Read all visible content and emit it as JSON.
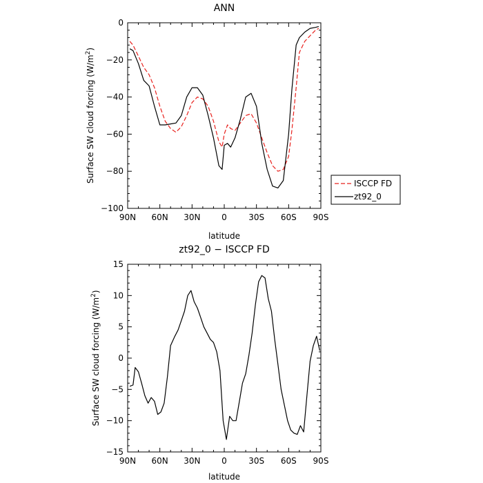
{
  "chart_data": [
    {
      "type": "line",
      "title": "ANN",
      "xlabel": "latitude",
      "ylabel": "Surface SW cloud forcing (W/m2)",
      "ylabel_main": "Surface SW cloud forcing (W/m",
      "ylabel_sup": "2",
      "ylabel_close": ")",
      "xlim": [
        90,
        -90
      ],
      "ylim": [
        -100,
        0
      ],
      "x_ticks": [
        90,
        60,
        30,
        0,
        -30,
        -60,
        -90
      ],
      "x_tick_labels": [
        "90N",
        "60N",
        "30N",
        "0",
        "30S",
        "60S",
        "90S"
      ],
      "y_ticks": [
        0,
        -20,
        -40,
        -60,
        -80,
        -100
      ],
      "y_tick_labels": [
        "0",
        "−20",
        "−40",
        "−60",
        "−80",
        "−100"
      ],
      "legend_position": "right-outside",
      "series": [
        {
          "name": "ISCCP FD",
          "color": "#e8201c",
          "dash": "dashed",
          "x": [
            88,
            85,
            80,
            75,
            70,
            65,
            60,
            55,
            50,
            45,
            40,
            35,
            30,
            25,
            20,
            15,
            10,
            5,
            2,
            0,
            -3,
            -6,
            -10,
            -15,
            -20,
            -25,
            -30,
            -35,
            -40,
            -45,
            -50,
            -55,
            -60,
            -63,
            -67,
            -70,
            -75,
            -80,
            -85,
            -88
          ],
          "y": [
            -10,
            -12,
            -18,
            -24,
            -28,
            -35,
            -45,
            -53,
            -57,
            -59,
            -56,
            -50,
            -43,
            -40,
            -41,
            -45,
            -53,
            -64,
            -67,
            -60,
            -55,
            -57,
            -58,
            -54,
            -50,
            -49,
            -54,
            -62,
            -70,
            -77,
            -80,
            -79,
            -72,
            -58,
            -35,
            -16,
            -10,
            -7,
            -4,
            -3
          ]
        },
        {
          "name": "zt92_0",
          "color": "#000000",
          "dash": "solid",
          "x": [
            88,
            85,
            80,
            75,
            70,
            65,
            60,
            55,
            50,
            45,
            40,
            35,
            30,
            25,
            20,
            15,
            10,
            5,
            2,
            0,
            -3,
            -6,
            -10,
            -15,
            -20,
            -25,
            -30,
            -35,
            -40,
            -45,
            -50,
            -55,
            -60,
            -63,
            -67,
            -70,
            -75,
            -80,
            -85,
            -88
          ],
          "y": [
            -14,
            -15,
            -22,
            -31,
            -34,
            -45,
            -55,
            -55,
            -54.5,
            -54,
            -50,
            -40,
            -35,
            -35,
            -39,
            -50,
            -62,
            -77,
            -79,
            -66,
            -65,
            -67,
            -62,
            -52,
            -40,
            -38,
            -45,
            -65,
            -79,
            -88,
            -89,
            -85,
            -60,
            -36,
            -12,
            -8,
            -5,
            -3,
            -2.5,
            -2
          ]
        }
      ]
    },
    {
      "type": "line",
      "title": "zt92_0 − ISCCP FD",
      "xlabel": "latitude",
      "ylabel": "Surface SW cloud forcing (W/m2)",
      "ylabel_main": "Surface SW cloud forcing (W/m",
      "ylabel_sup": "2",
      "ylabel_close": ")",
      "xlim": [
        90,
        -90
      ],
      "ylim": [
        -15,
        15
      ],
      "x_ticks": [
        90,
        60,
        30,
        0,
        -30,
        -60,
        -90
      ],
      "x_tick_labels": [
        "90N",
        "60N",
        "30N",
        "0",
        "30S",
        "60S",
        "90S"
      ],
      "y_ticks": [
        15,
        10,
        5,
        0,
        -5,
        -10,
        -15
      ],
      "y_tick_labels": [
        "15",
        "10",
        "5",
        "0",
        "−5",
        "−10",
        "−15"
      ],
      "series": [
        {
          "color": "#000000",
          "x": [
            88,
            85,
            83,
            80,
            77,
            74,
            71,
            68,
            65,
            62,
            59,
            56,
            53,
            50,
            46,
            43,
            40,
            37,
            34,
            31,
            28,
            25,
            22,
            19,
            16,
            13,
            10,
            7,
            4,
            1,
            -2,
            -5,
            -8,
            -11,
            -14,
            -17,
            -20,
            -23,
            -26,
            -29,
            -32,
            -35,
            -38,
            -41,
            -44,
            -47,
            -50,
            -53,
            -56,
            -59,
            -62,
            -65,
            -68,
            -71,
            -74,
            -77,
            -80,
            -83,
            -86,
            -89
          ],
          "y": [
            -4.5,
            -4.3,
            -1.5,
            -2.2,
            -4.0,
            -6.0,
            -7.2,
            -6.3,
            -6.9,
            -9.0,
            -8.6,
            -7.2,
            -3.0,
            2.0,
            3.5,
            4.5,
            6.0,
            7.5,
            10.0,
            10.8,
            9.0,
            8.0,
            6.5,
            5.0,
            4.0,
            3.0,
            2.5,
            1.0,
            -2.0,
            -10.0,
            -13.0,
            -9.3,
            -10.0,
            -10.0,
            -7.0,
            -4.0,
            -2.5,
            0.5,
            4.0,
            8.5,
            12.2,
            13.2,
            12.8,
            9.5,
            7.5,
            3.0,
            -1.0,
            -5.0,
            -7.5,
            -10.0,
            -11.5,
            -12.0,
            -12.2,
            -10.8,
            -11.8,
            -6.0,
            -0.5,
            2.0,
            3.5,
            1.2
          ]
        }
      ]
    }
  ]
}
